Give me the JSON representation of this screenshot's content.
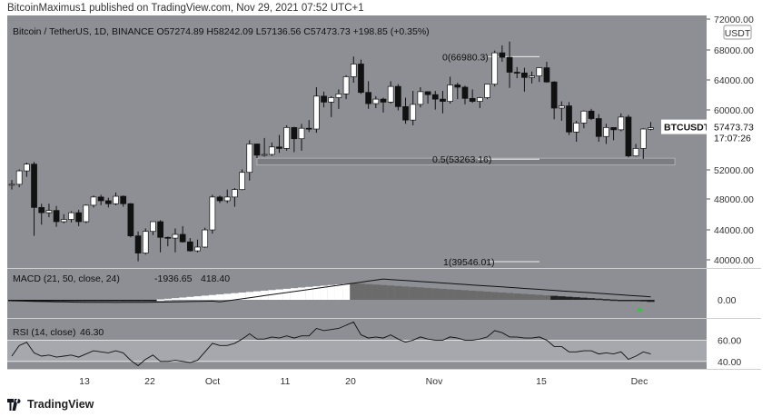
{
  "header": {
    "publish_line": "BitcoinMaximus1 published on TradingView.com, Nov 29, 2021 07:52 UTC+1"
  },
  "footer": {
    "brand": "TradingView"
  },
  "colors": {
    "panel_bg": "#8e8f95",
    "rsi_band": "#a7a8ad",
    "up_candle": "#ffffff",
    "down_candle": "#111111",
    "support_zone": "#7b7c82",
    "text_dark": "#222222",
    "macd_up": "#ffffff",
    "macd_down": "#111111",
    "green_marker": "#3fbf4a"
  },
  "chart_data": {
    "type": "candlestick",
    "symbol_line": {
      "name": "Bitcoin / TetherUS, 1D, BINANCE",
      "O": "57274.89",
      "H": "58242.09",
      "L": "57136.56",
      "C": "57473.73",
      "change": "+198.85 (+0.35%)"
    },
    "currency_badge": "USDT",
    "price_axis": {
      "ticks": [
        "72000.00",
        "68000.00",
        "64000.00",
        "60000.00",
        "56000.00",
        "52000.00",
        "48000.00",
        "44000.00",
        "40000.00"
      ],
      "range": [
        38700,
        72500
      ]
    },
    "time_axis": {
      "labels": [
        "13",
        "22",
        "Oct",
        "11",
        "20",
        "Nov",
        "15",
        "Dec"
      ],
      "label_indices": [
        9,
        18,
        27,
        36,
        45,
        57,
        71,
        85
      ]
    },
    "last_price_label": {
      "symbol": "BTCUSDT",
      "price": "57473.73",
      "countdown": "17:07:26",
      "value": 57473.73
    },
    "fib_levels": [
      {
        "label": "0(66980.3)",
        "value": 66980.3
      },
      {
        "label": "0.5(53263.16)",
        "value": 53263.16
      },
      {
        "label": "1(39546.01)",
        "value": 39546.01
      }
    ],
    "support_zone": {
      "low": 52500,
      "high": 53400
    },
    "candles": [
      {
        "d": "Sep 04",
        "o": 49800,
        "h": 50500,
        "l": 49200,
        "c": 49900
      },
      {
        "d": "Sep 05",
        "o": 49900,
        "h": 51900,
        "l": 49500,
        "c": 51700
      },
      {
        "d": "Sep 06",
        "o": 51700,
        "h": 52800,
        "l": 50900,
        "c": 52600
      },
      {
        "d": "Sep 07",
        "o": 52600,
        "h": 52900,
        "l": 43000,
        "c": 46800
      },
      {
        "d": "Sep 08",
        "o": 46800,
        "h": 47300,
        "l": 44500,
        "c": 46100
      },
      {
        "d": "Sep 09",
        "o": 46100,
        "h": 47300,
        "l": 45500,
        "c": 46400
      },
      {
        "d": "Sep 10",
        "o": 46400,
        "h": 47000,
        "l": 44200,
        "c": 44900
      },
      {
        "d": "Sep 11",
        "o": 44900,
        "h": 45900,
        "l": 44700,
        "c": 45200
      },
      {
        "d": "Sep 12",
        "o": 45200,
        "h": 46300,
        "l": 44800,
        "c": 46100
      },
      {
        "d": "Sep 13",
        "o": 46100,
        "h": 46500,
        "l": 44300,
        "c": 44900
      },
      {
        "d": "Sep 14",
        "o": 44900,
        "h": 47200,
        "l": 44700,
        "c": 47100
      },
      {
        "d": "Sep 15",
        "o": 47100,
        "h": 48400,
        "l": 46800,
        "c": 48200
      },
      {
        "d": "Sep 16",
        "o": 48200,
        "h": 48500,
        "l": 47100,
        "c": 47700
      },
      {
        "d": "Sep 17",
        "o": 47700,
        "h": 48100,
        "l": 46800,
        "c": 47300
      },
      {
        "d": "Sep 18",
        "o": 47300,
        "h": 48800,
        "l": 47100,
        "c": 48300
      },
      {
        "d": "Sep 19",
        "o": 48300,
        "h": 48400,
        "l": 46900,
        "c": 47300
      },
      {
        "d": "Sep 20",
        "o": 47300,
        "h": 47400,
        "l": 42800,
        "c": 43000
      },
      {
        "d": "Sep 21",
        "o": 43000,
        "h": 43600,
        "l": 39600,
        "c": 40700
      },
      {
        "d": "Sep 22",
        "o": 40700,
        "h": 44000,
        "l": 40500,
        "c": 43600
      },
      {
        "d": "Sep 23",
        "o": 43600,
        "h": 44900,
        "l": 43100,
        "c": 44900
      },
      {
        "d": "Sep 24",
        "o": 44900,
        "h": 45100,
        "l": 40800,
        "c": 42800
      },
      {
        "d": "Sep 25",
        "o": 42800,
        "h": 42900,
        "l": 41600,
        "c": 42700
      },
      {
        "d": "Sep 26",
        "o": 42700,
        "h": 44000,
        "l": 40800,
        "c": 43200
      },
      {
        "d": "Sep 27",
        "o": 43200,
        "h": 44300,
        "l": 42100,
        "c": 42200
      },
      {
        "d": "Sep 28",
        "o": 42200,
        "h": 42700,
        "l": 40900,
        "c": 41000
      },
      {
        "d": "Sep 29",
        "o": 41000,
        "h": 42500,
        "l": 40800,
        "c": 41500
      },
      {
        "d": "Sep 30",
        "o": 41500,
        "h": 44100,
        "l": 41400,
        "c": 43800
      },
      {
        "d": "Oct 01",
        "o": 43800,
        "h": 48500,
        "l": 43300,
        "c": 48200
      },
      {
        "d": "Oct 02",
        "o": 48200,
        "h": 48400,
        "l": 47400,
        "c": 47700
      },
      {
        "d": "Oct 03",
        "o": 47700,
        "h": 49200,
        "l": 47400,
        "c": 48200
      },
      {
        "d": "Oct 04",
        "o": 48200,
        "h": 49400,
        "l": 46900,
        "c": 49200
      },
      {
        "d": "Oct 05",
        "o": 49200,
        "h": 51900,
        "l": 49100,
        "c": 51500
      },
      {
        "d": "Oct 06",
        "o": 51500,
        "h": 55800,
        "l": 50400,
        "c": 55300
      },
      {
        "d": "Oct 07",
        "o": 55300,
        "h": 55300,
        "l": 53400,
        "c": 53800
      },
      {
        "d": "Oct 08",
        "o": 53800,
        "h": 56100,
        "l": 53600,
        "c": 53900
      },
      {
        "d": "Oct 09",
        "o": 53900,
        "h": 55500,
        "l": 53700,
        "c": 54900
      },
      {
        "d": "Oct 10",
        "o": 54900,
        "h": 56500,
        "l": 54100,
        "c": 54700
      },
      {
        "d": "Oct 11",
        "o": 54700,
        "h": 57800,
        "l": 54400,
        "c": 57500
      },
      {
        "d": "Oct 12",
        "o": 57500,
        "h": 57600,
        "l": 54200,
        "c": 56000
      },
      {
        "d": "Oct 13",
        "o": 56000,
        "h": 58000,
        "l": 54400,
        "c": 57400
      },
      {
        "d": "Oct 14",
        "o": 57400,
        "h": 58500,
        "l": 56900,
        "c": 57300
      },
      {
        "d": "Oct 15",
        "o": 57300,
        "h": 62900,
        "l": 56800,
        "c": 61700
      },
      {
        "d": "Oct 16",
        "o": 61700,
        "h": 62300,
        "l": 60200,
        "c": 60900
      },
      {
        "d": "Oct 17",
        "o": 60900,
        "h": 61700,
        "l": 58900,
        "c": 61500
      },
      {
        "d": "Oct 18",
        "o": 61500,
        "h": 62600,
        "l": 60000,
        "c": 62000
      },
      {
        "d": "Oct 19",
        "o": 62000,
        "h": 64500,
        "l": 61300,
        "c": 64300
      },
      {
        "d": "Oct 20",
        "o": 64300,
        "h": 67000,
        "l": 63500,
        "c": 66000
      },
      {
        "d": "Oct 21",
        "o": 66000,
        "h": 66600,
        "l": 62000,
        "c": 62200
      },
      {
        "d": "Oct 22",
        "o": 62200,
        "h": 63700,
        "l": 60000,
        "c": 60700
      },
      {
        "d": "Oct 23",
        "o": 60700,
        "h": 61700,
        "l": 60100,
        "c": 61300
      },
      {
        "d": "Oct 24",
        "o": 61300,
        "h": 61500,
        "l": 59500,
        "c": 60900
      },
      {
        "d": "Oct 25",
        "o": 60900,
        "h": 63700,
        "l": 60700,
        "c": 63000
      },
      {
        "d": "Oct 26",
        "o": 63000,
        "h": 63300,
        "l": 59800,
        "c": 60300
      },
      {
        "d": "Oct 27",
        "o": 60300,
        "h": 61500,
        "l": 58000,
        "c": 58500
      },
      {
        "d": "Oct 28",
        "o": 58500,
        "h": 62400,
        "l": 57800,
        "c": 60600
      },
      {
        "d": "Oct 29",
        "o": 60600,
        "h": 62900,
        "l": 60200,
        "c": 62300
      },
      {
        "d": "Oct 30",
        "o": 62300,
        "h": 62300,
        "l": 60700,
        "c": 61900
      },
      {
        "d": "Oct 31",
        "o": 61900,
        "h": 62400,
        "l": 59900,
        "c": 61300
      },
      {
        "d": "Nov 01",
        "o": 61300,
        "h": 62400,
        "l": 59400,
        "c": 61000
      },
      {
        "d": "Nov 02",
        "o": 61000,
        "h": 64300,
        "l": 60700,
        "c": 63200
      },
      {
        "d": "Nov 03",
        "o": 63200,
        "h": 63500,
        "l": 61300,
        "c": 62900
      },
      {
        "d": "Nov 04",
        "o": 62900,
        "h": 63100,
        "l": 60600,
        "c": 61400
      },
      {
        "d": "Nov 05",
        "o": 61400,
        "h": 62600,
        "l": 60800,
        "c": 61000
      },
      {
        "d": "Nov 06",
        "o": 61000,
        "h": 61600,
        "l": 60100,
        "c": 61500
      },
      {
        "d": "Nov 07",
        "o": 61500,
        "h": 63300,
        "l": 61300,
        "c": 63300
      },
      {
        "d": "Nov 08",
        "o": 63300,
        "h": 67800,
        "l": 63000,
        "c": 67500
      },
      {
        "d": "Nov 09",
        "o": 67500,
        "h": 68500,
        "l": 66300,
        "c": 66900
      },
      {
        "d": "Nov 10",
        "o": 66900,
        "h": 69000,
        "l": 62800,
        "c": 64900
      },
      {
        "d": "Nov 11",
        "o": 64900,
        "h": 65600,
        "l": 64100,
        "c": 64800
      },
      {
        "d": "Nov 12",
        "o": 64800,
        "h": 65500,
        "l": 62300,
        "c": 64200
      },
      {
        "d": "Nov 13",
        "o": 64200,
        "h": 65000,
        "l": 63400,
        "c": 64400
      },
      {
        "d": "Nov 14",
        "o": 64400,
        "h": 65400,
        "l": 63600,
        "c": 65500
      },
      {
        "d": "Nov 15",
        "o": 65500,
        "h": 66300,
        "l": 63500,
        "c": 63600
      },
      {
        "d": "Nov 16",
        "o": 63600,
        "h": 63700,
        "l": 58600,
        "c": 60100
      },
      {
        "d": "Nov 17",
        "o": 60100,
        "h": 61000,
        "l": 58400,
        "c": 60400
      },
      {
        "d": "Nov 18",
        "o": 60400,
        "h": 60900,
        "l": 56500,
        "c": 56900
      },
      {
        "d": "Nov 19",
        "o": 56900,
        "h": 58400,
        "l": 55600,
        "c": 58100
      },
      {
        "d": "Nov 20",
        "o": 58100,
        "h": 59800,
        "l": 57400,
        "c": 59700
      },
      {
        "d": "Nov 21",
        "o": 59700,
        "h": 60000,
        "l": 58500,
        "c": 58700
      },
      {
        "d": "Nov 22",
        "o": 58700,
        "h": 59300,
        "l": 55600,
        "c": 56300
      },
      {
        "d": "Nov 23",
        "o": 56300,
        "h": 58000,
        "l": 55300,
        "c": 57500
      },
      {
        "d": "Nov 24",
        "o": 57500,
        "h": 57500,
        "l": 55800,
        "c": 57200
      },
      {
        "d": "Nov 25",
        "o": 57200,
        "h": 59400,
        "l": 57000,
        "c": 58900
      },
      {
        "d": "Nov 26",
        "o": 58900,
        "h": 59200,
        "l": 53500,
        "c": 53700
      },
      {
        "d": "Nov 27",
        "o": 53700,
        "h": 55300,
        "l": 53600,
        "c": 54700
      },
      {
        "d": "Nov 28",
        "o": 54700,
        "h": 57400,
        "l": 53300,
        "c": 57300
      },
      {
        "d": "Nov 29",
        "o": 57274.89,
        "h": 58242.09,
        "l": 57136.56,
        "c": 57473.73
      }
    ],
    "macd": {
      "label": "MACD (21, 50, close, 24)",
      "value1": "-1936.65",
      "value2": "418.40",
      "axis_tick": "0.00",
      "range": [
        -1000,
        4200
      ]
    },
    "rsi": {
      "label": "RSI (14, close)",
      "value": "46.30",
      "axis_ticks": [
        "60.00",
        "40.00"
      ],
      "band": [
        40,
        60
      ],
      "range": [
        33,
        80
      ],
      "values": [
        45,
        55,
        58,
        48,
        45,
        46,
        44,
        45,
        46,
        44,
        47,
        50,
        49,
        48,
        50,
        48,
        41,
        36,
        42,
        46,
        40,
        40,
        41,
        40,
        39,
        41,
        49,
        57,
        55,
        55,
        57,
        61,
        66,
        61,
        61,
        63,
        62,
        64,
        62,
        64,
        64,
        71,
        69,
        70,
        71,
        74,
        77,
        65,
        62,
        63,
        62,
        65,
        61,
        58,
        60,
        63,
        61,
        60,
        60,
        63,
        62,
        60,
        60,
        61,
        63,
        69,
        67,
        63,
        63,
        62,
        62,
        63,
        60,
        54,
        54,
        49,
        49,
        50,
        50,
        47,
        48,
        47,
        49,
        42,
        45,
        49,
        47
      ]
    }
  }
}
